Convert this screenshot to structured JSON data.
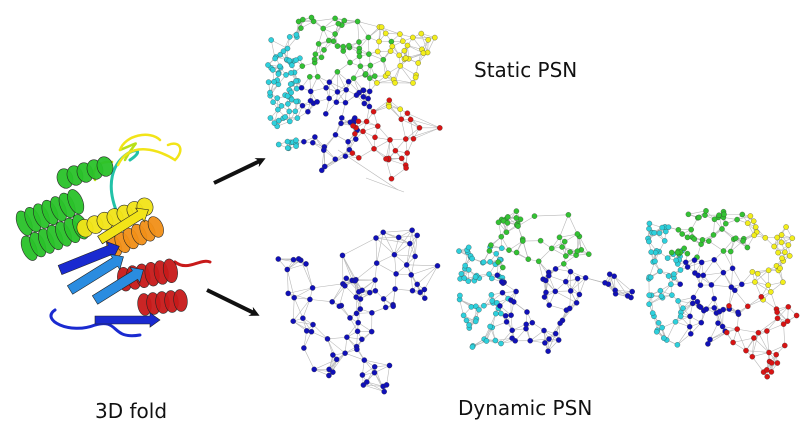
{
  "labels": {
    "static": "Static PSN",
    "dynamic": "Dynamic PSN",
    "fold": "3D fold"
  },
  "colors": {
    "cyan": "#2ed0dc",
    "green": "#33c233",
    "blue": "#1010b8",
    "yellow": "#f2ee1c",
    "red": "#d81414",
    "edge": "#b8b8b8",
    "arrow": "#111111"
  },
  "clusters": {
    "static": [
      {
        "color": "cyan",
        "count": 70
      },
      {
        "color": "green",
        "count": 45
      },
      {
        "color": "blue",
        "count": 45
      },
      {
        "color": "yellow",
        "count": 35
      },
      {
        "color": "red",
        "count": 30
      }
    ],
    "dynamic_step1": [
      {
        "color": "blue",
        "count": 85
      }
    ],
    "dynamic_step2": [
      {
        "color": "cyan",
        "count": 60
      },
      {
        "color": "green",
        "count": 40
      },
      {
        "color": "blue",
        "count": 55
      }
    ],
    "dynamic_step3": [
      {
        "color": "cyan",
        "count": 55
      },
      {
        "color": "green",
        "count": 40
      },
      {
        "color": "blue",
        "count": 40
      },
      {
        "color": "yellow",
        "count": 30
      },
      {
        "color": "red",
        "count": 28
      }
    ]
  },
  "protein": {
    "gradient": [
      "#1a2ad0",
      "#2a8ce0",
      "#22c2a8",
      "#2ac22a",
      "#b8e018",
      "#f2e418",
      "#f29018",
      "#e04418",
      "#c81a1a"
    ]
  }
}
